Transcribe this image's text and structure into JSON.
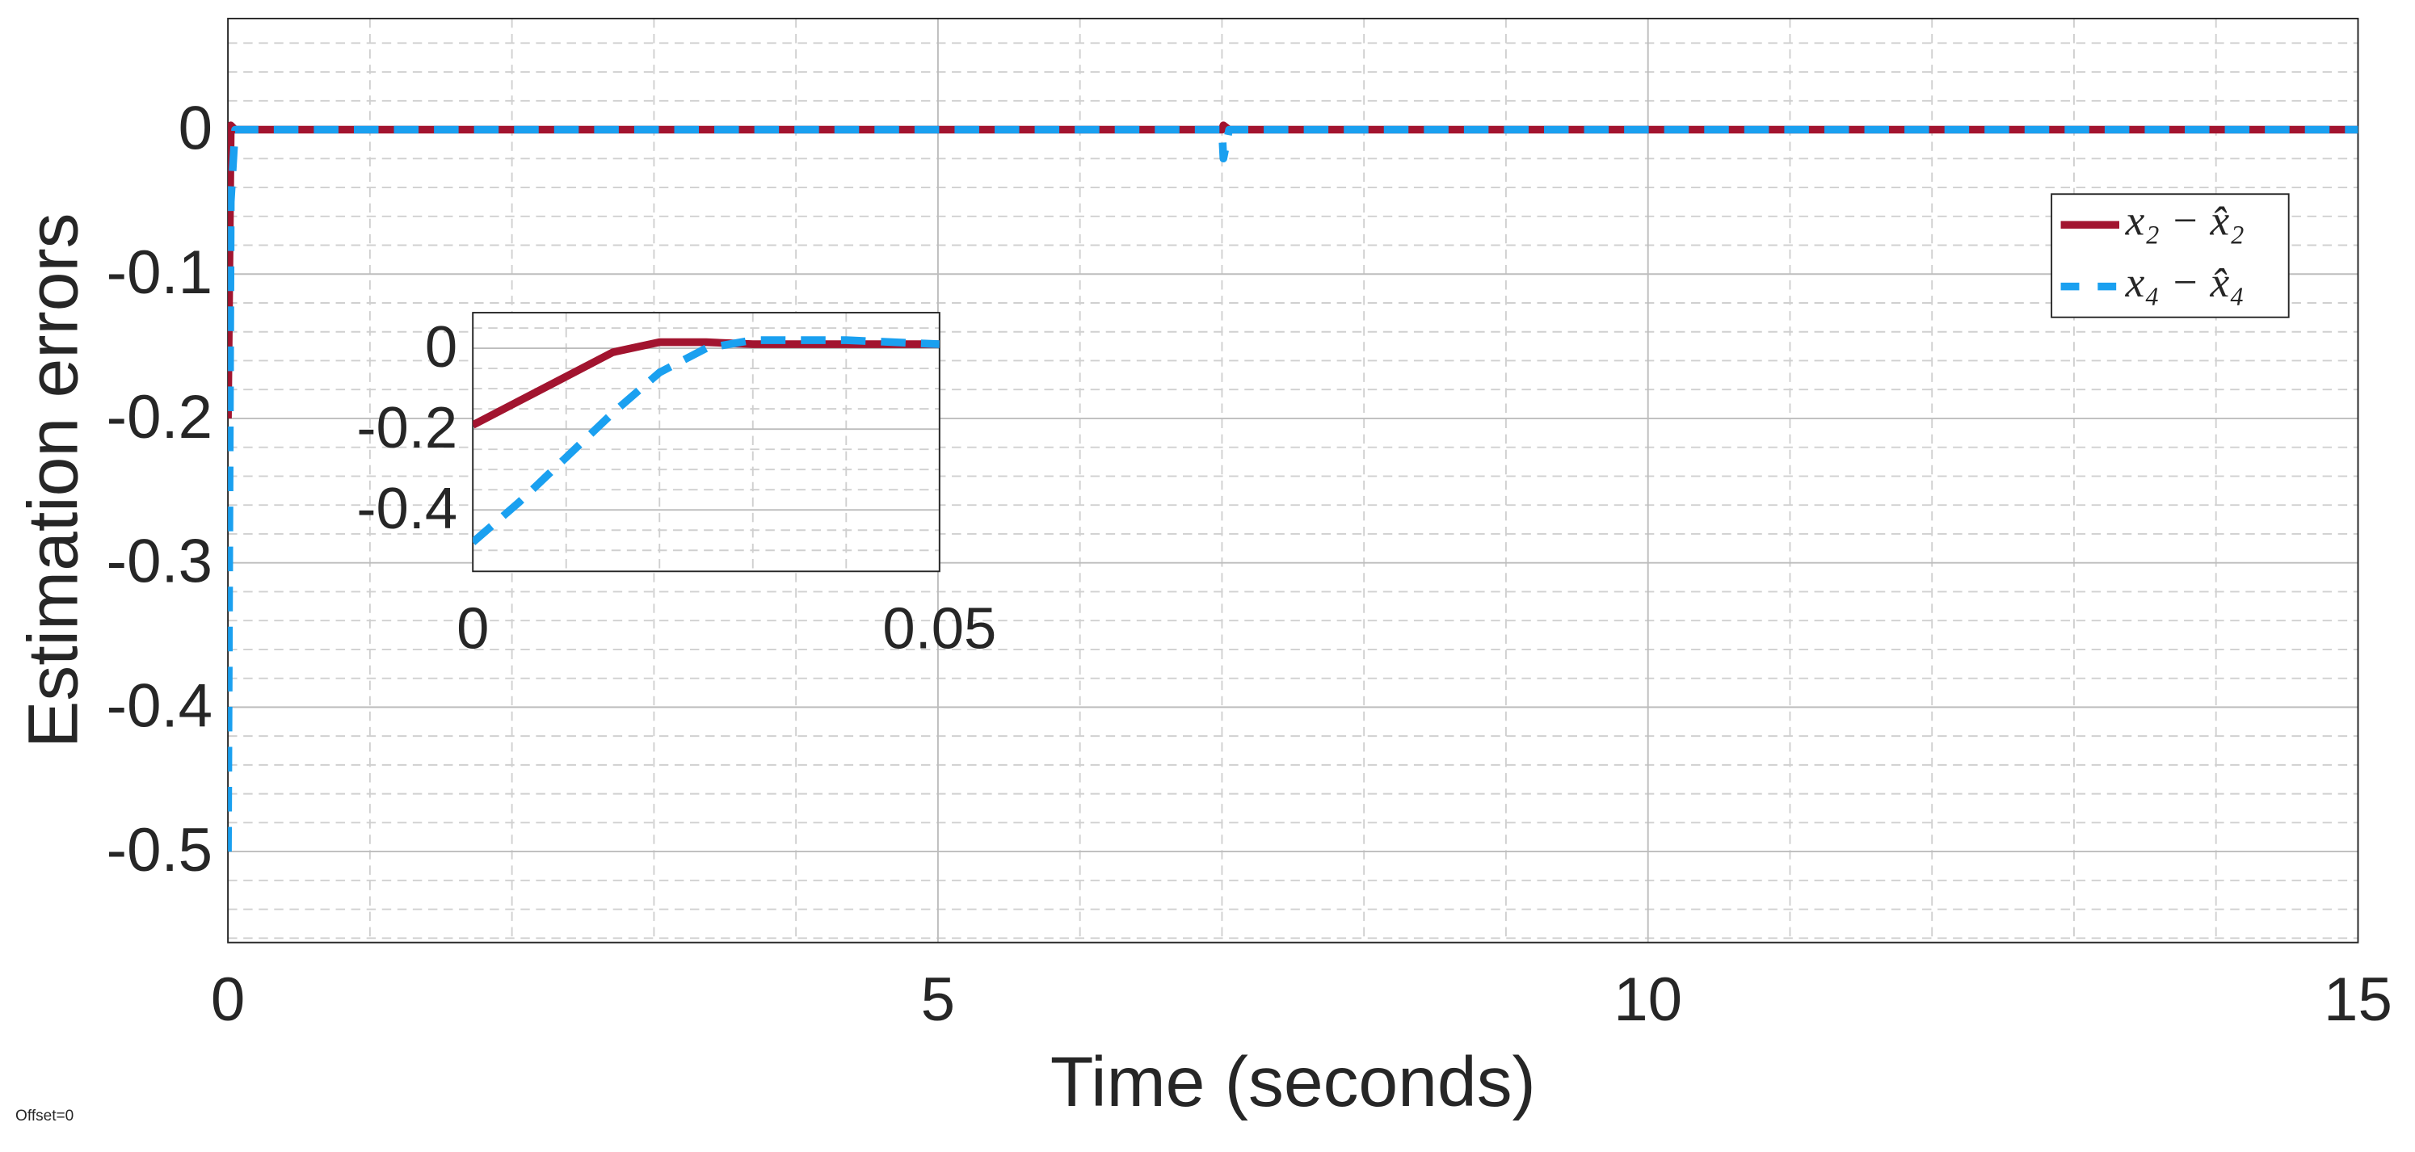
{
  "chart_data": [
    {
      "type": "line",
      "xlabel": "Time (seconds)",
      "ylabel": "Estimation errors",
      "note": "Offset=0",
      "x": [
        0,
        0.02,
        0.05,
        7,
        7.01,
        7.05,
        15
      ],
      "series": [
        {
          "name": "x₂ − x̂₂",
          "color": "#a2142f",
          "dash": false,
          "values": [
            -0.2,
            0.003,
            0,
            0,
            0.003,
            0,
            0
          ]
        },
        {
          "name": "x₄ − x̂₄",
          "color": "#1aa0f0",
          "dash": true,
          "values": [
            -0.5,
            -0.05,
            0,
            0,
            -0.02,
            0,
            0
          ]
        }
      ],
      "xlim": [
        0,
        15
      ],
      "ylim": [
        -0.563,
        0.077
      ],
      "xticks": [
        0,
        5,
        10,
        15
      ],
      "yticks": [
        -0.5,
        -0.4,
        -0.3,
        -0.2,
        -0.1,
        0
      ],
      "xminorticks": [
        1,
        2,
        3,
        4,
        6,
        7,
        8,
        9,
        11,
        12,
        13,
        14
      ],
      "yminorticks": [
        -0.56,
        -0.54,
        -0.52,
        -0.48,
        -0.46,
        -0.44,
        -0.42,
        -0.38,
        -0.36,
        -0.34,
        -0.32,
        -0.28,
        -0.26,
        -0.24,
        -0.22,
        -0.18,
        -0.16,
        -0.14,
        -0.12,
        -0.08,
        -0.06,
        -0.04,
        -0.02,
        0.02,
        0.04,
        0.06
      ],
      "grid": true,
      "legend": "upper right"
    },
    {
      "type": "line",
      "x": [
        0,
        0.005,
        0.01,
        0.015,
        0.02,
        0.025,
        0.03,
        0.04,
        0.05
      ],
      "series": [
        {
          "color": "#a2142f",
          "dash": false,
          "values": [
            -0.19,
            -0.13,
            -0.07,
            -0.01,
            0.015,
            0.015,
            0.01,
            0.01,
            0.01
          ]
        },
        {
          "color": "#1aa0f0",
          "dash": true,
          "values": [
            -0.48,
            -0.38,
            -0.27,
            -0.16,
            -0.06,
            0,
            0.02,
            0.02,
            0.01
          ]
        }
      ],
      "xlim": [
        0,
        0.05
      ],
      "ylim": [
        -0.552,
        0.088
      ],
      "xticks": [
        0,
        0.05
      ],
      "yticks": [
        -0.4,
        -0.2,
        0
      ],
      "xminorticks": [
        0.01,
        0.02,
        0.03,
        0.04
      ],
      "yminorticks": [
        -0.5,
        -0.3,
        -0.1,
        0.05,
        -0.05,
        -0.15,
        -0.25,
        -0.35,
        -0.45
      ],
      "grid": true
    }
  ]
}
